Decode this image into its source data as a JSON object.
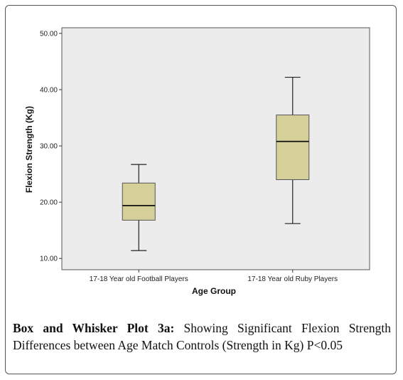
{
  "chart_data": {
    "type": "box",
    "xlabel": "Age Group",
    "ylabel": "Flexion Strength (Kg)",
    "ylim": [
      8,
      51
    ],
    "yticks": [
      10,
      20,
      30,
      40,
      50
    ],
    "ytick_labels": [
      "10.00",
      "20.00",
      "30.00",
      "40.00",
      "50.00"
    ],
    "grid": false,
    "box_color": "#d5d09a",
    "plot_background": "#ececec",
    "categories": [
      "17-18 Year old Football Players",
      "17-18 Year old Ruby Players"
    ],
    "boxes": [
      {
        "category": "17-18 Year old Football Players",
        "min": 11.4,
        "q1": 16.8,
        "median": 19.4,
        "q3": 23.4,
        "max": 26.7
      },
      {
        "category": "17-18 Year old Ruby Players",
        "min": 16.2,
        "q1": 24.0,
        "median": 30.8,
        "q3": 35.5,
        "max": 42.2
      }
    ]
  },
  "caption": {
    "bold": "Box and Whisker Plot 3a:",
    "text": " Showing Significant Flexion Strength Differences between Age Match Controls (Strength in Kg) P<0.05"
  }
}
